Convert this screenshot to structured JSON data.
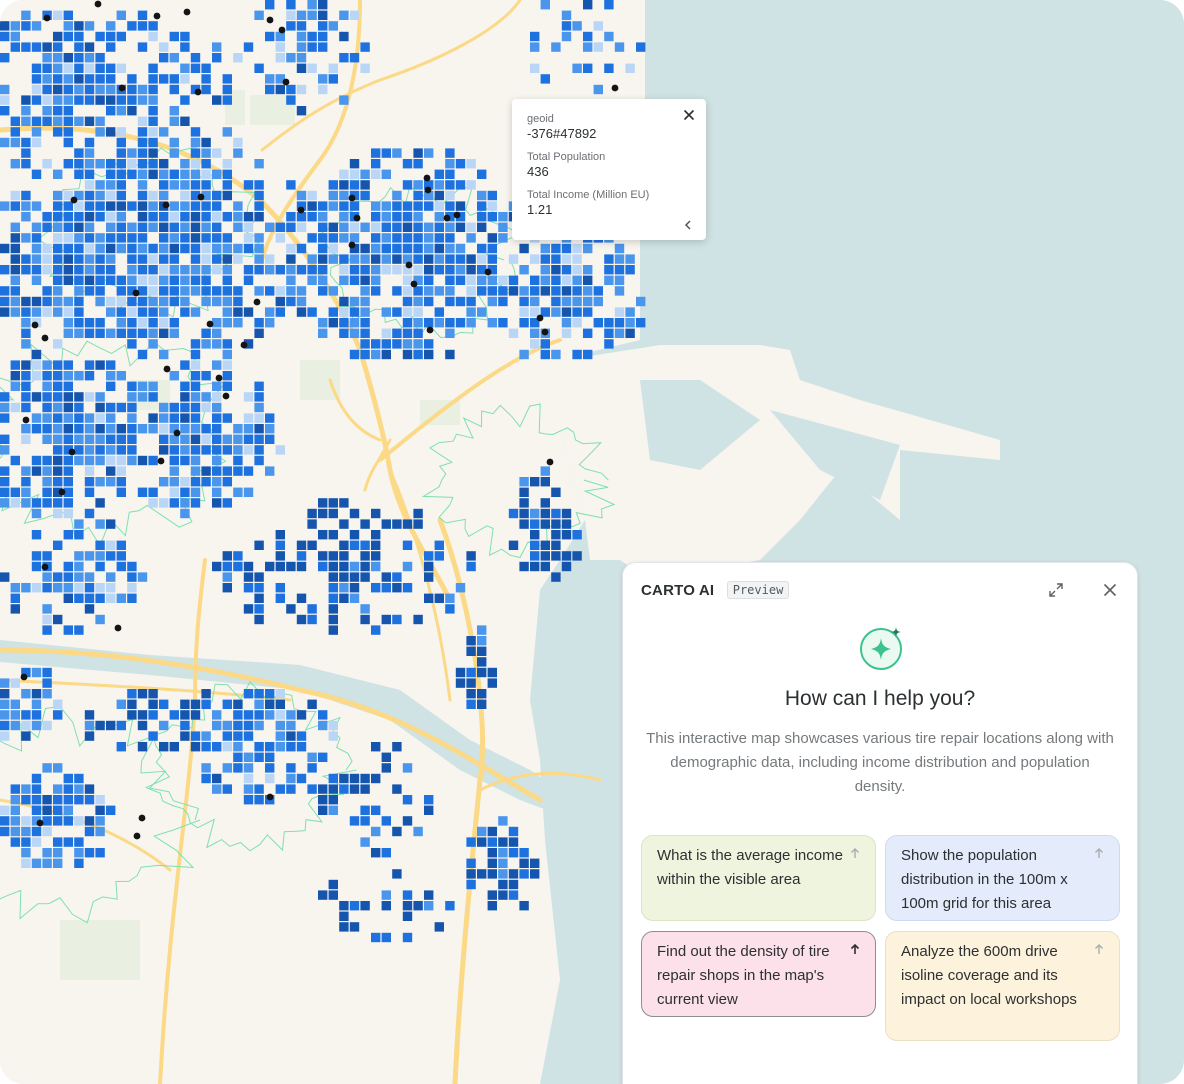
{
  "map": {
    "colors": {
      "water": "#cfe2e4",
      "land": "#f8f5ef",
      "road": "#fbd986",
      "cell_light": "#bad6f7",
      "cell_mid": "#4a96ec",
      "cell_blue": "#1e72e0",
      "cell_dark": "#1655ad",
      "isoline": "#7ee0b0",
      "point": "#141414"
    }
  },
  "tooltip": {
    "fields": [
      {
        "label": "geoid",
        "value": "-376#47892"
      },
      {
        "label": "Total Population",
        "value": "436"
      },
      {
        "label": "Total Income (Million EU)",
        "value": "1.21"
      }
    ],
    "close_icon": "close-icon",
    "collapse_icon": "chevron-left-icon"
  },
  "ai_panel": {
    "title": "CARTO AI",
    "badge": "Preview",
    "greeting": "How can I help you?",
    "intro": "This interactive map showcases various tire repair locations along with demographic data, including income distribution and population density.",
    "suggestions": [
      {
        "text": "What is the average income within the visible area",
        "icon": "arrow-up-icon"
      },
      {
        "text": "Show the population distribution in the 100m x 100m grid for this area",
        "icon": "arrow-up-icon"
      },
      {
        "text": "Find out the density of tire repair shops in the map's current view",
        "icon": "arrow-up-icon"
      },
      {
        "text": "Analyze the 600m drive isoline coverage and its impact on local workshops",
        "icon": "arrow-up-icon"
      }
    ],
    "accent": "#3cc28c"
  }
}
